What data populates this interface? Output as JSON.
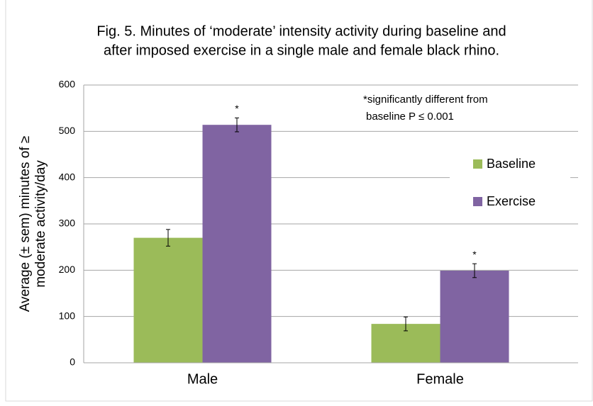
{
  "chart_data": {
    "type": "bar",
    "title": [
      "Fig. 5. Minutes of ‘moderate’ intensity activity during baseline and",
      "after imposed exercise in a single male and female black rhino."
    ],
    "y_label": [
      "Average (± sem) minutes of ≥",
      "moderate activity/day"
    ],
    "annotation": [
      "*significantly different from",
      "baseline P  ≤ 0.001"
    ],
    "categories": [
      "Male",
      "Female"
    ],
    "series": [
      {
        "name": "Baseline",
        "color": "#9bbb59",
        "values": [
          270,
          84
        ],
        "errors": [
          18,
          15
        ]
      },
      {
        "name": "Exercise",
        "color": "#8064a2",
        "values": [
          514,
          199
        ],
        "errors": [
          15,
          15
        ],
        "marker_labels": [
          "*",
          "*"
        ]
      }
    ],
    "ylim": [
      0,
      600
    ],
    "yticks": [
      0,
      100,
      200,
      300,
      400,
      500,
      600
    ],
    "grid": true,
    "legend": "right"
  }
}
